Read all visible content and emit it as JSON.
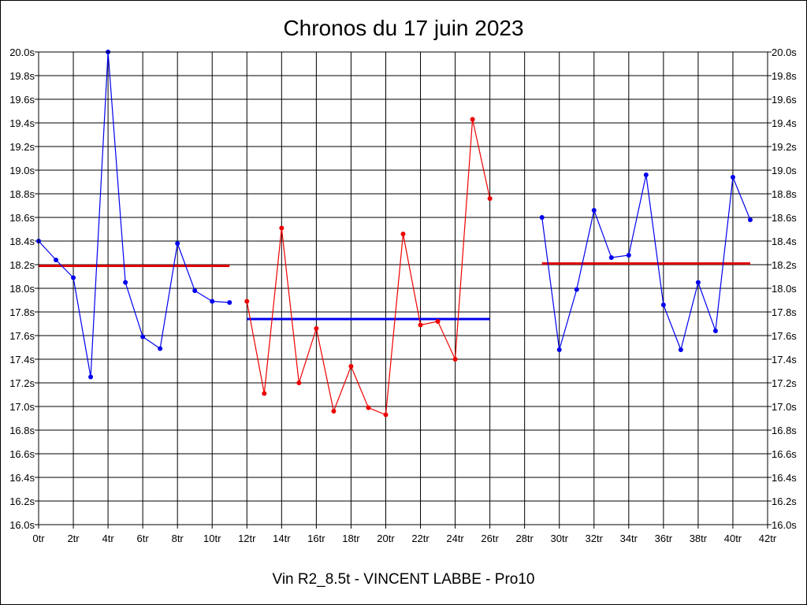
{
  "chart_data": {
    "type": "line",
    "title": "Chronos du 17 juin 2023",
    "subtitle": "Vin R2_8.5t - VINCENT LABBE - Pro10",
    "xlim": [
      0,
      42
    ],
    "ylim": [
      16.0,
      20.0
    ],
    "x_ticks": [
      "0tr",
      "2tr",
      "4tr",
      "6tr",
      "8tr",
      "10tr",
      "12tr",
      "14tr",
      "16tr",
      "18tr",
      "20tr",
      "22tr",
      "24tr",
      "26tr",
      "28tr",
      "30tr",
      "32tr",
      "34tr",
      "36tr",
      "38tr",
      "40tr",
      "42tr"
    ],
    "y_ticks": [
      "16.0s",
      "16.2s",
      "16.4s",
      "16.6s",
      "16.8s",
      "17.0s",
      "17.2s",
      "17.4s",
      "17.6s",
      "17.8s",
      "18.0s",
      "18.2s",
      "18.4s",
      "18.6s",
      "18.8s",
      "19.0s",
      "19.2s",
      "19.4s",
      "19.6s",
      "19.8s",
      "20.0s"
    ],
    "grid": true,
    "series": [
      {
        "color": "#0000ee",
        "x": [
          0,
          1,
          2,
          3,
          4,
          5,
          6,
          7,
          8,
          9,
          10,
          11
        ],
        "values": [
          18.4,
          18.24,
          18.09,
          17.25,
          20.0,
          18.05,
          17.59,
          17.49,
          18.38,
          17.98,
          17.89,
          17.88
        ]
      },
      {
        "color": "#ee0000",
        "x": [
          12,
          13,
          14,
          15,
          16,
          17,
          18,
          19,
          20,
          21,
          22,
          23,
          24,
          25,
          26
        ],
        "values": [
          17.89,
          17.11,
          18.51,
          17.2,
          17.66,
          16.96,
          17.34,
          16.99,
          16.93,
          18.46,
          17.69,
          17.72,
          17.4,
          19.43,
          18.76
        ]
      },
      {
        "color": "#0000ee",
        "x": [
          29,
          30,
          31,
          32,
          33,
          34,
          35,
          36,
          37,
          38,
          39,
          40,
          41
        ],
        "values": [
          18.6,
          17.48,
          17.99,
          18.66,
          18.26,
          18.28,
          18.96,
          17.86,
          17.48,
          18.05,
          17.64,
          18.94,
          18.58
        ]
      }
    ],
    "averages": [
      {
        "color": "#dd0000",
        "x_start": 0,
        "x_end": 11,
        "value": 18.19
      },
      {
        "color": "#0000ee",
        "x_start": 12,
        "x_end": 26,
        "value": 17.74
      },
      {
        "color": "#dd0000",
        "x_start": 29,
        "x_end": 41,
        "value": 18.21
      }
    ]
  }
}
